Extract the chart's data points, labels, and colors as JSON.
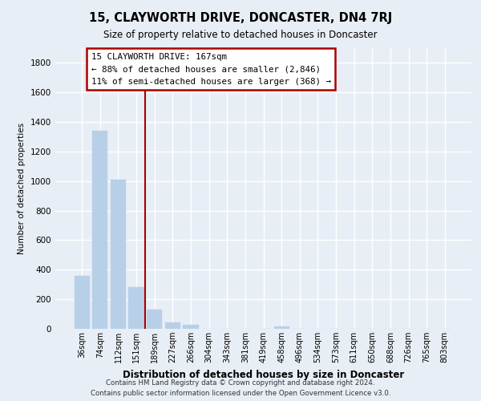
{
  "title1": "15, CLAYWORTH DRIVE, DONCASTER, DN4 7RJ",
  "title2": "Size of property relative to detached houses in Doncaster",
  "xlabel": "Distribution of detached houses by size in Doncaster",
  "ylabel": "Number of detached properties",
  "bar_labels": [
    "36sqm",
    "74sqm",
    "112sqm",
    "151sqm",
    "189sqm",
    "227sqm",
    "266sqm",
    "304sqm",
    "343sqm",
    "381sqm",
    "419sqm",
    "458sqm",
    "496sqm",
    "534sqm",
    "573sqm",
    "611sqm",
    "650sqm",
    "688sqm",
    "726sqm",
    "765sqm",
    "803sqm"
  ],
  "bar_values": [
    360,
    1340,
    1010,
    285,
    130,
    45,
    28,
    0,
    0,
    0,
    0,
    18,
    0,
    0,
    0,
    0,
    0,
    0,
    0,
    0,
    0
  ],
  "bar_color": "#b8cfe8",
  "bar_edge_color": "#b8cfe8",
  "ylim": [
    0,
    1900
  ],
  "yticks": [
    0,
    200,
    400,
    600,
    800,
    1000,
    1200,
    1400,
    1600,
    1800
  ],
  "property_line_color": "#aa0000",
  "annotation_title": "15 CLAYWORTH DRIVE: 167sqm",
  "annotation_line1": "← 88% of detached houses are smaller (2,846)",
  "annotation_line2": "11% of semi-detached houses are larger (368) →",
  "footer1": "Contains HM Land Registry data © Crown copyright and database right 2024.",
  "footer2": "Contains public sector information licensed under the Open Government Licence v3.0.",
  "background_color": "#e8eef5",
  "plot_background": "#e8eef5",
  "grid_color": "#ffffff"
}
